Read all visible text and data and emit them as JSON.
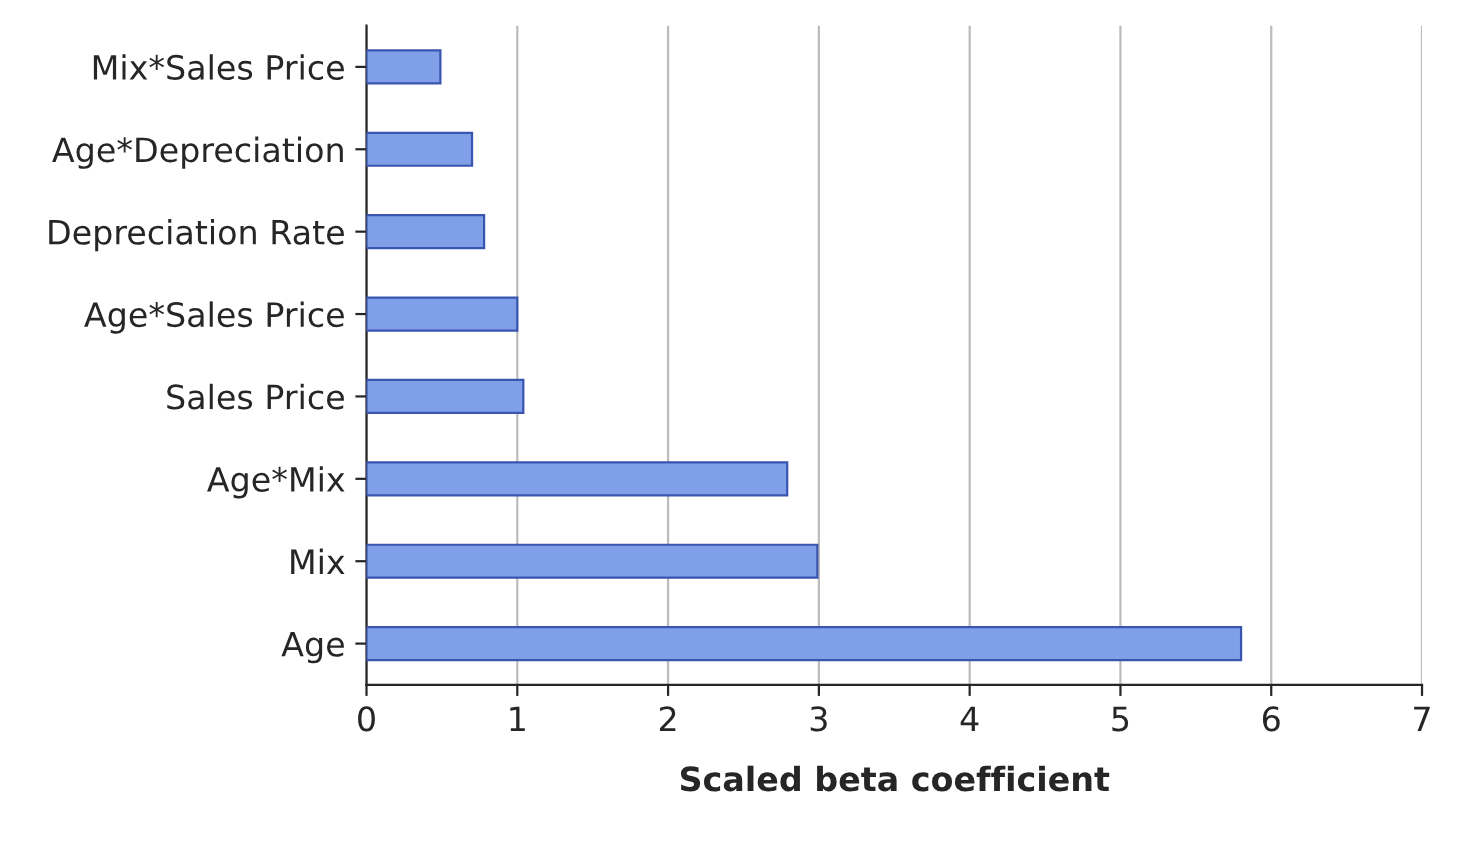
{
  "chart_data": {
    "type": "bar",
    "orientation": "horizontal",
    "xlabel": "Scaled beta coefficient",
    "categories": [
      "Mix*Sales Price",
      "Age*Depreciation",
      "Depreciation Rate",
      "Age*Sales Price",
      "Sales Price",
      "Age*Mix",
      "Mix",
      "Age"
    ],
    "values": [
      0.49,
      0.7,
      0.78,
      1.0,
      1.04,
      2.79,
      2.99,
      5.8
    ],
    "color": "#7f9fe8",
    "xlim": [
      0,
      7
    ],
    "xticks": [
      0,
      1,
      2,
      3,
      4,
      5,
      6,
      7
    ],
    "grid": "x",
    "legend": false
  }
}
